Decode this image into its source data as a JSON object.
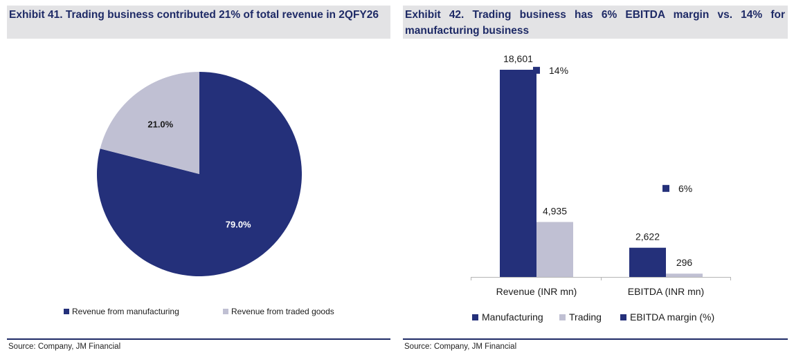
{
  "exhibit41": {
    "title": "Exhibit 41. Trading business contributed 21% of total revenue in 2QFY26",
    "source": "Source: Company, JM Financial",
    "chart_data": {
      "type": "pie",
      "title": "Exhibit 41. Trading business contributed 21% of total revenue in 2QFY26",
      "slices": [
        {
          "label": "Revenue from manufacturing",
          "value": 79.0,
          "data_label": "79.0%",
          "color": "#24307a"
        },
        {
          "label": "Revenue from traded goods",
          "value": 21.0,
          "data_label": "21.0%",
          "color": "#c0c0d3"
        }
      ],
      "legend": "bottom"
    }
  },
  "exhibit42": {
    "title": "Exhibit 42. Trading business has 6% EBITDA margin vs. 14% for manufacturing business",
    "source": "Source: Company, JM Financial",
    "chart_data": {
      "type": "bar",
      "title": "Exhibit 42. Trading business has 6% EBITDA margin vs. 14% for manufacturing business",
      "categories": [
        "Revenue (INR mn)",
        "EBITDA (INR mn)"
      ],
      "series": [
        {
          "name": "Manufacturing",
          "values": [
            18601,
            2622
          ],
          "labels": [
            "18,601",
            "2,622"
          ],
          "color": "#24307a"
        },
        {
          "name": "Trading",
          "values": [
            4935,
            296
          ],
          "labels": [
            "4,935",
            "296"
          ],
          "color": "#c0c0d3"
        }
      ],
      "secondary_series": {
        "name": "EBITDA margin (%)",
        "type": "scatter",
        "color": "#24307a",
        "points": [
          {
            "category": "Revenue (INR mn)",
            "value": 14,
            "label": "14%"
          },
          {
            "category": "EBITDA (INR mn)",
            "value": 6,
            "label": "6%"
          }
        ],
        "ylim": [
          0,
          16
        ]
      },
      "ylim": [
        0,
        20000
      ],
      "legend": "bottom"
    }
  }
}
